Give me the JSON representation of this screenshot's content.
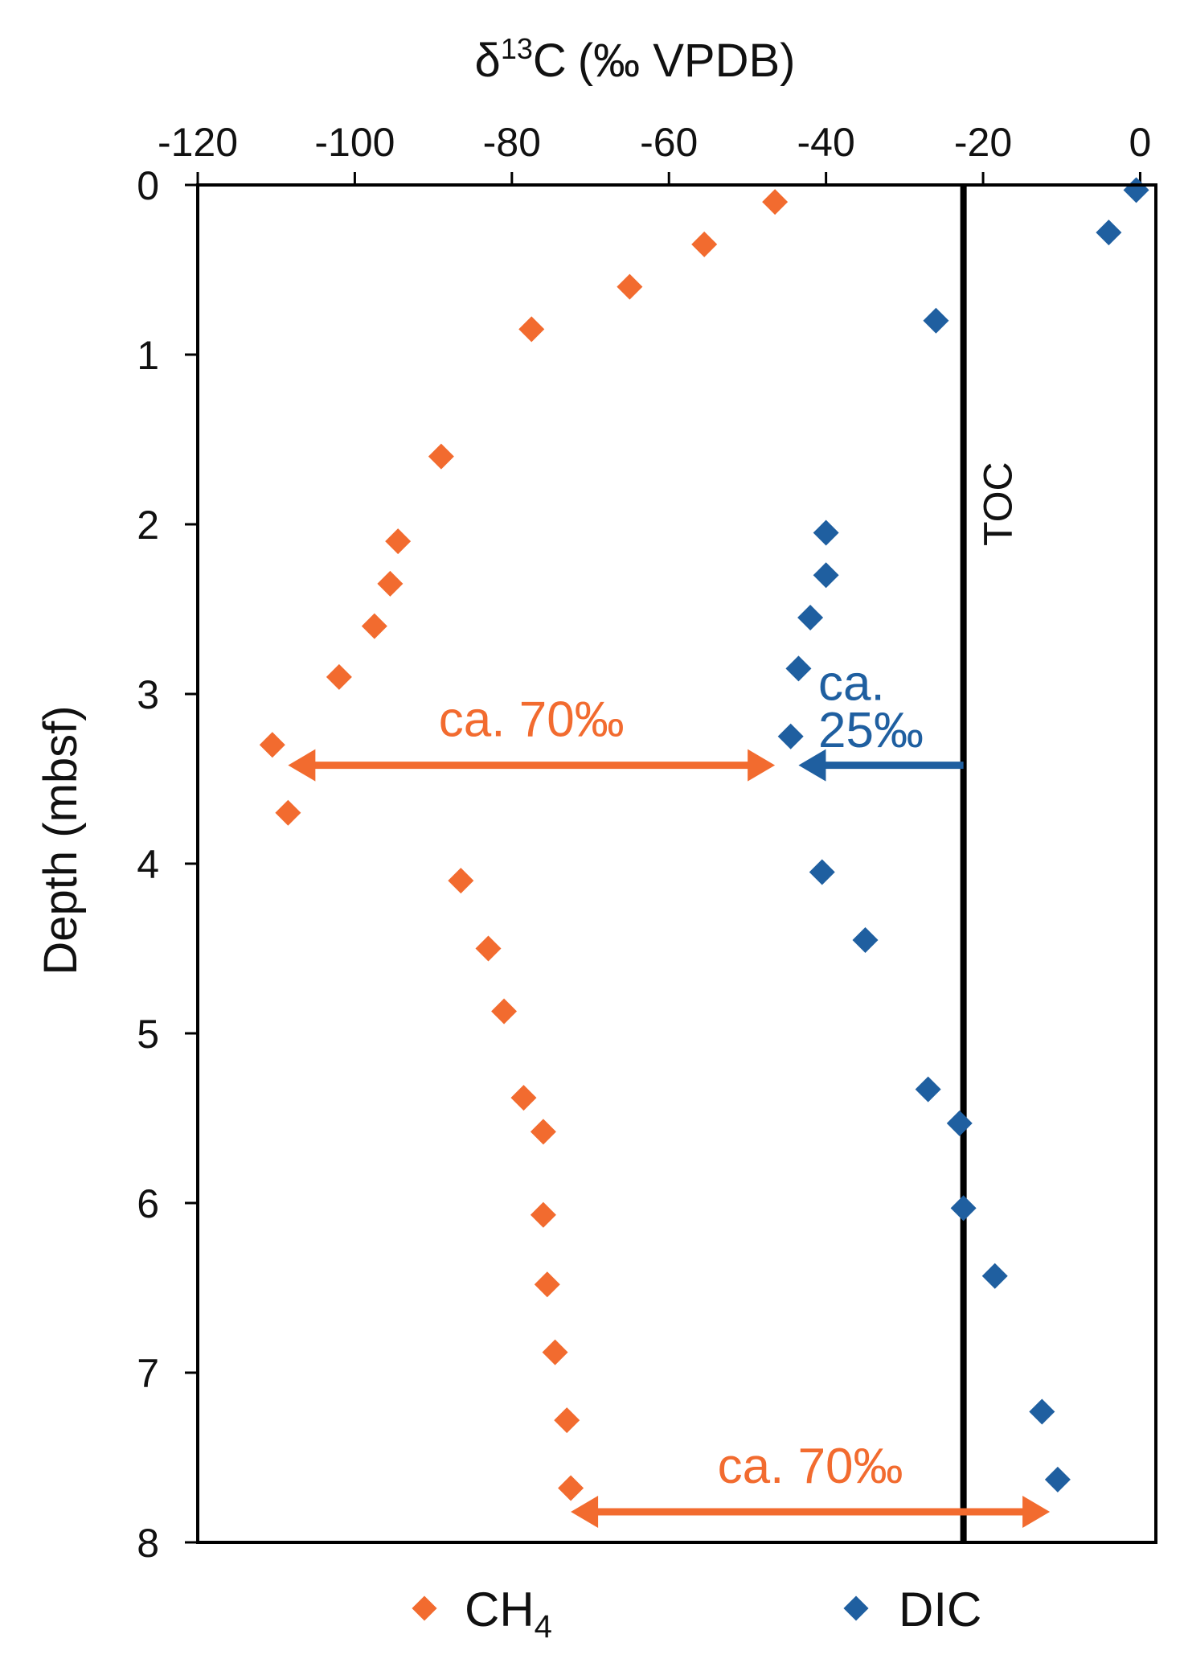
{
  "chart_data": {
    "type": "scatter",
    "x_title": "(‰ VPDB)",
    "x_title_delta": "δ",
    "x_title_sup": "13",
    "x_title_c": "C",
    "y_title": "Depth (mbsf)",
    "xlim": [
      -120,
      2
    ],
    "ylim": [
      0,
      8
    ],
    "x_ticks": [
      -120,
      -100,
      -80,
      -60,
      -40,
      -20,
      0
    ],
    "y_ticks": [
      0,
      1,
      2,
      3,
      4,
      5,
      6,
      7,
      8
    ],
    "colors": {
      "ch4": "#f26b2f",
      "dic": "#1f5fa0",
      "axis": "#000000"
    },
    "series": [
      {
        "name": "CH4",
        "legend_main": "CH",
        "legend_sub": "4",
        "color": "#f26b2f",
        "points": [
          {
            "x": -46.5,
            "y": 0.1
          },
          {
            "x": -55.5,
            "y": 0.35
          },
          {
            "x": -65,
            "y": 0.6
          },
          {
            "x": -77.5,
            "y": 0.85
          },
          {
            "x": -89,
            "y": 1.6
          },
          {
            "x": -94.5,
            "y": 2.1
          },
          {
            "x": -95.5,
            "y": 2.35
          },
          {
            "x": -97.5,
            "y": 2.6
          },
          {
            "x": -102,
            "y": 2.9
          },
          {
            "x": -110.5,
            "y": 3.3
          },
          {
            "x": -108.5,
            "y": 3.7
          },
          {
            "x": -86.5,
            "y": 4.1
          },
          {
            "x": -83,
            "y": 4.5
          },
          {
            "x": -81,
            "y": 4.87
          },
          {
            "x": -78.5,
            "y": 5.38
          },
          {
            "x": -76,
            "y": 5.58
          },
          {
            "x": -76,
            "y": 6.07
          },
          {
            "x": -75.5,
            "y": 6.48
          },
          {
            "x": -74.5,
            "y": 6.88
          },
          {
            "x": -73,
            "y": 7.28
          },
          {
            "x": -72.5,
            "y": 7.68
          }
        ]
      },
      {
        "name": "DIC",
        "legend_main": "DIC",
        "color": "#1f5fa0",
        "points": [
          {
            "x": -0.5,
            "y": 0.03
          },
          {
            "x": -4,
            "y": 0.28
          },
          {
            "x": -26,
            "y": 0.8
          },
          {
            "x": -40,
            "y": 2.05
          },
          {
            "x": -40,
            "y": 2.3
          },
          {
            "x": -42,
            "y": 2.55
          },
          {
            "x": -43.5,
            "y": 2.85
          },
          {
            "x": -44.5,
            "y": 3.25
          },
          {
            "x": -40.5,
            "y": 4.05
          },
          {
            "x": -35,
            "y": 4.45
          },
          {
            "x": -27,
            "y": 5.33
          },
          {
            "x": -23,
            "y": 5.53
          },
          {
            "x": -22.5,
            "y": 6.03
          },
          {
            "x": -18.5,
            "y": 6.43
          },
          {
            "x": -12.5,
            "y": 7.23
          },
          {
            "x": -10.5,
            "y": 7.63
          }
        ]
      }
    ],
    "toc": {
      "label": "TOC",
      "x": -22.5
    },
    "annotations": [
      {
        "id": "ch4-upper",
        "text": "ca. 70‰",
        "color": "#f26b2f",
        "x_from": -108.5,
        "x_to": -46.5,
        "y": 3.42
      },
      {
        "id": "dic-toc",
        "line1": "ca.",
        "line2": "25‰",
        "color": "#1f5fa0",
        "x_from": -22.5,
        "x_to": -43.5,
        "y": 3.42
      },
      {
        "id": "ch4-lower",
        "text": "ca. 70‰",
        "color": "#f26b2f",
        "x_from": -72.5,
        "x_to": -11.5,
        "y": 7.82
      }
    ]
  }
}
